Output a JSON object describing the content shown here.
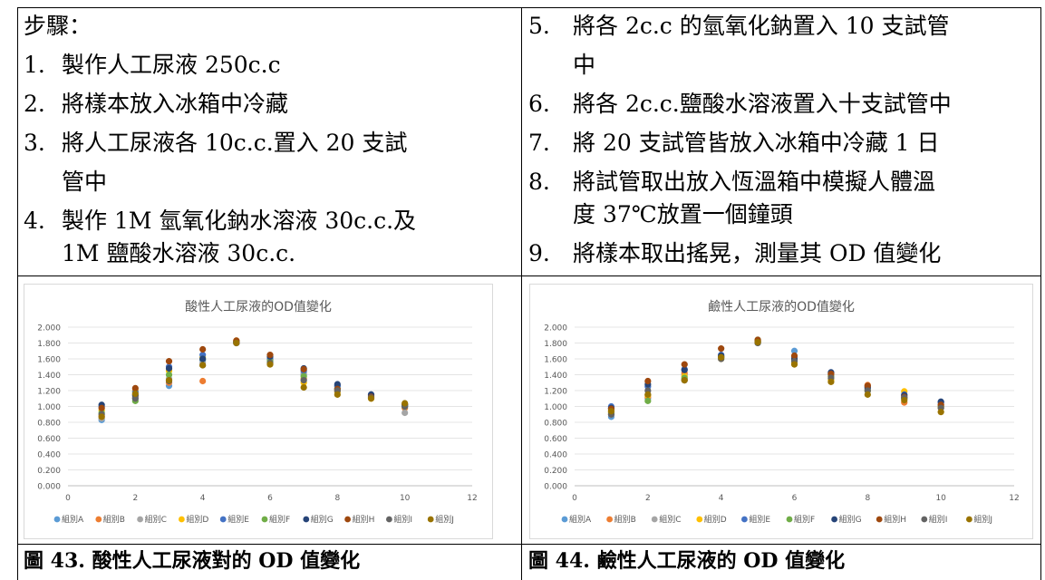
{
  "steps_left": {
    "heading": "步驟：",
    "items": [
      {
        "num": "1.",
        "lines": [
          "製作人工尿液 250c.c"
        ]
      },
      {
        "num": "2.",
        "lines": [
          "將樣本放入冰箱中冷藏"
        ]
      },
      {
        "num": "3.",
        "lines": [
          "將人工尿液各 10c.c.置入 20 支試",
          "管中"
        ]
      },
      {
        "num": "4.",
        "lines": [
          "製作 1M 氫氧化鈉水溶液 30c.c.及",
          "1M 鹽酸水溶液 30c.c."
        ]
      }
    ]
  },
  "steps_right": {
    "items": [
      {
        "num": "5.",
        "lines": [
          "將各 2c.c 的氫氧化鈉置入 10 支試管",
          "中"
        ]
      },
      {
        "num": "6.",
        "lines": [
          "將各 2c.c.鹽酸水溶液置入十支試管中"
        ]
      },
      {
        "num": "7.",
        "lines": [
          "將 20 支試管皆放入冰箱中冷藏 1 日"
        ]
      },
      {
        "num": "8.",
        "lines": [
          "將試管取出放入恆溫箱中模擬人體溫",
          "度 37℃放置一個鐘頭"
        ]
      },
      {
        "num": "9.",
        "lines": [
          "將樣本取出搖晃，測量其 OD 值變化"
        ]
      }
    ]
  },
  "captions": {
    "left": "圖 43. 酸性人工尿液對的 OD 值變化",
    "right": "圖 44. 鹼性人工尿液的 OD 值變化"
  },
  "chart_data": [
    {
      "type": "scatter",
      "title": "酸性人工尿液的OD值變化",
      "xlim": [
        0,
        12
      ],
      "ylim": [
        0,
        2
      ],
      "xticks": [
        "0",
        "2",
        "4",
        "6",
        "8",
        "10",
        "12"
      ],
      "yticks": [
        "0.000",
        "0.200",
        "0.400",
        "0.600",
        "0.800",
        "1.000",
        "1.200",
        "1.400",
        "1.600",
        "1.800",
        "2.000"
      ],
      "grid": true,
      "legend_position": "bottom",
      "x": [
        1,
        2,
        3,
        4,
        5,
        6,
        7,
        8,
        9,
        10
      ],
      "series": [
        {
          "name": "組別A",
          "color": "#5b9bd5",
          "values": [
            0.83,
            1.1,
            1.26,
            1.58,
            1.8,
            1.6,
            1.4,
            1.25,
            1.12,
            1.0
          ]
        },
        {
          "name": "組別B",
          "color": "#ed7d31",
          "values": [
            0.88,
            1.12,
            1.3,
            1.32,
            1.82,
            1.58,
            1.35,
            1.2,
            1.14,
            0.98
          ]
        },
        {
          "name": "組別C",
          "color": "#a5a5a5",
          "values": [
            0.85,
            1.15,
            1.35,
            1.55,
            1.81,
            1.62,
            1.42,
            1.22,
            1.13,
            0.92
          ]
        },
        {
          "name": "組別D",
          "color": "#ffc000",
          "values": [
            0.95,
            1.2,
            1.45,
            1.62,
            1.83,
            1.55,
            1.3,
            1.18,
            1.1,
            1.02
          ]
        },
        {
          "name": "組別E",
          "color": "#4472c4",
          "values": [
            1.0,
            1.18,
            1.5,
            1.65,
            1.8,
            1.6,
            1.45,
            1.26,
            1.15,
            1.01
          ]
        },
        {
          "name": "組別F",
          "color": "#70ad47",
          "values": [
            0.92,
            1.07,
            1.4,
            1.6,
            1.82,
            1.57,
            1.38,
            1.22,
            1.12,
            1.0
          ]
        },
        {
          "name": "組別G",
          "color": "#264478",
          "values": [
            1.02,
            1.14,
            1.48,
            1.6,
            1.81,
            1.63,
            1.48,
            1.28,
            1.15,
            1.02
          ]
        },
        {
          "name": "組別H",
          "color": "#9e480e",
          "values": [
            0.98,
            1.23,
            1.57,
            1.72,
            1.83,
            1.65,
            1.47,
            1.22,
            1.12,
            1.03
          ]
        },
        {
          "name": "組別I",
          "color": "#636363",
          "values": [
            0.9,
            1.1,
            1.32,
            1.52,
            1.8,
            1.55,
            1.33,
            1.2,
            1.11,
            1.0
          ]
        },
        {
          "name": "組別J",
          "color": "#997300",
          "values": [
            0.87,
            1.16,
            1.33,
            1.52,
            1.8,
            1.53,
            1.24,
            1.15,
            1.1,
            1.04
          ]
        }
      ]
    },
    {
      "type": "scatter",
      "title": "鹼性人工尿液的OD值變化",
      "xlim": [
        0,
        12
      ],
      "ylim": [
        0,
        2
      ],
      "xticks": [
        "0",
        "2",
        "4",
        "6",
        "8",
        "10",
        "12"
      ],
      "yticks": [
        "0.000",
        "0.200",
        "0.400",
        "0.600",
        "0.800",
        "1.000",
        "1.200",
        "1.400",
        "1.600",
        "1.800",
        "2.000"
      ],
      "grid": true,
      "legend_position": "bottom",
      "x": [
        1,
        2,
        3,
        4,
        5,
        6,
        7,
        8,
        9,
        10
      ],
      "series": [
        {
          "name": "組別A",
          "color": "#5b9bd5",
          "values": [
            0.87,
            1.1,
            1.4,
            1.62,
            1.8,
            1.7,
            1.4,
            1.22,
            1.1,
            1.0
          ]
        },
        {
          "name": "組別B",
          "color": "#ed7d31",
          "values": [
            0.9,
            1.12,
            1.42,
            1.63,
            1.82,
            1.6,
            1.38,
            1.27,
            1.05,
            0.98
          ]
        },
        {
          "name": "組別C",
          "color": "#a5a5a5",
          "values": [
            0.95,
            1.15,
            1.35,
            1.6,
            1.81,
            1.62,
            1.35,
            1.22,
            1.12,
            1.02
          ]
        },
        {
          "name": "組別D",
          "color": "#ffc000",
          "values": [
            0.93,
            1.14,
            1.38,
            1.6,
            1.83,
            1.55,
            1.33,
            1.2,
            1.19,
            1.0
          ]
        },
        {
          "name": "組別E",
          "color": "#4472c4",
          "values": [
            1.0,
            1.25,
            1.47,
            1.65,
            1.81,
            1.63,
            1.42,
            1.25,
            1.15,
            1.05
          ]
        },
        {
          "name": "組別F",
          "color": "#70ad47",
          "values": [
            0.92,
            1.07,
            1.36,
            1.62,
            1.84,
            1.58,
            1.38,
            1.2,
            1.1,
            1.0
          ]
        },
        {
          "name": "組別G",
          "color": "#264478",
          "values": [
            0.98,
            1.28,
            1.46,
            1.64,
            1.82,
            1.6,
            1.43,
            1.24,
            1.14,
            1.06
          ]
        },
        {
          "name": "組別H",
          "color": "#9e480e",
          "values": [
            0.97,
            1.32,
            1.53,
            1.73,
            1.84,
            1.64,
            1.41,
            1.26,
            1.12,
            1.02
          ]
        },
        {
          "name": "組別I",
          "color": "#636363",
          "values": [
            0.9,
            1.2,
            1.33,
            1.6,
            1.8,
            1.57,
            1.36,
            1.2,
            1.11,
            0.98
          ]
        },
        {
          "name": "組別J",
          "color": "#997300",
          "values": [
            0.94,
            1.15,
            1.33,
            1.62,
            1.81,
            1.53,
            1.31,
            1.15,
            1.08,
            0.93
          ]
        }
      ]
    }
  ]
}
